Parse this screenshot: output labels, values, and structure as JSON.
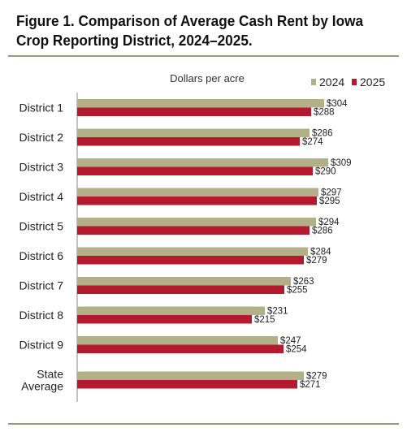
{
  "figure": {
    "title": "Figure 1. Comparison of Average Cash Rent by Iowa\nCrop Reporting District, 2024–2025."
  },
  "colors": {
    "series_2024": "#b3b089",
    "series_2025": "#b5192e",
    "axis": "#888888"
  },
  "chart_data": {
    "type": "bar",
    "orientation": "horizontal",
    "title": "",
    "unit_label": "Dollars per acre",
    "categories": [
      "District 1",
      "District 2",
      "District 3",
      "District 4",
      "District 5",
      "District 6",
      "District 7",
      "District 8",
      "District 9",
      "State\nAverage"
    ],
    "series": [
      {
        "name": "2024",
        "values": [
          304,
          286,
          309,
          297,
          294,
          284,
          263,
          231,
          247,
          279
        ],
        "labels": [
          "$304",
          "$286",
          "$309",
          "$297",
          "$294",
          "$284",
          "$263",
          "$231",
          "$247",
          "$279"
        ]
      },
      {
        "name": "2025",
        "values": [
          288,
          274,
          290,
          295,
          286,
          279,
          255,
          215,
          254,
          271
        ],
        "labels": [
          "$288",
          "$274",
          "$290",
          "$295",
          "$286",
          "$279",
          "$255",
          "$215",
          "$254",
          "$271"
        ]
      }
    ],
    "xlim": [
      0,
      320
    ],
    "grid": false,
    "legend_position": "top-right"
  }
}
